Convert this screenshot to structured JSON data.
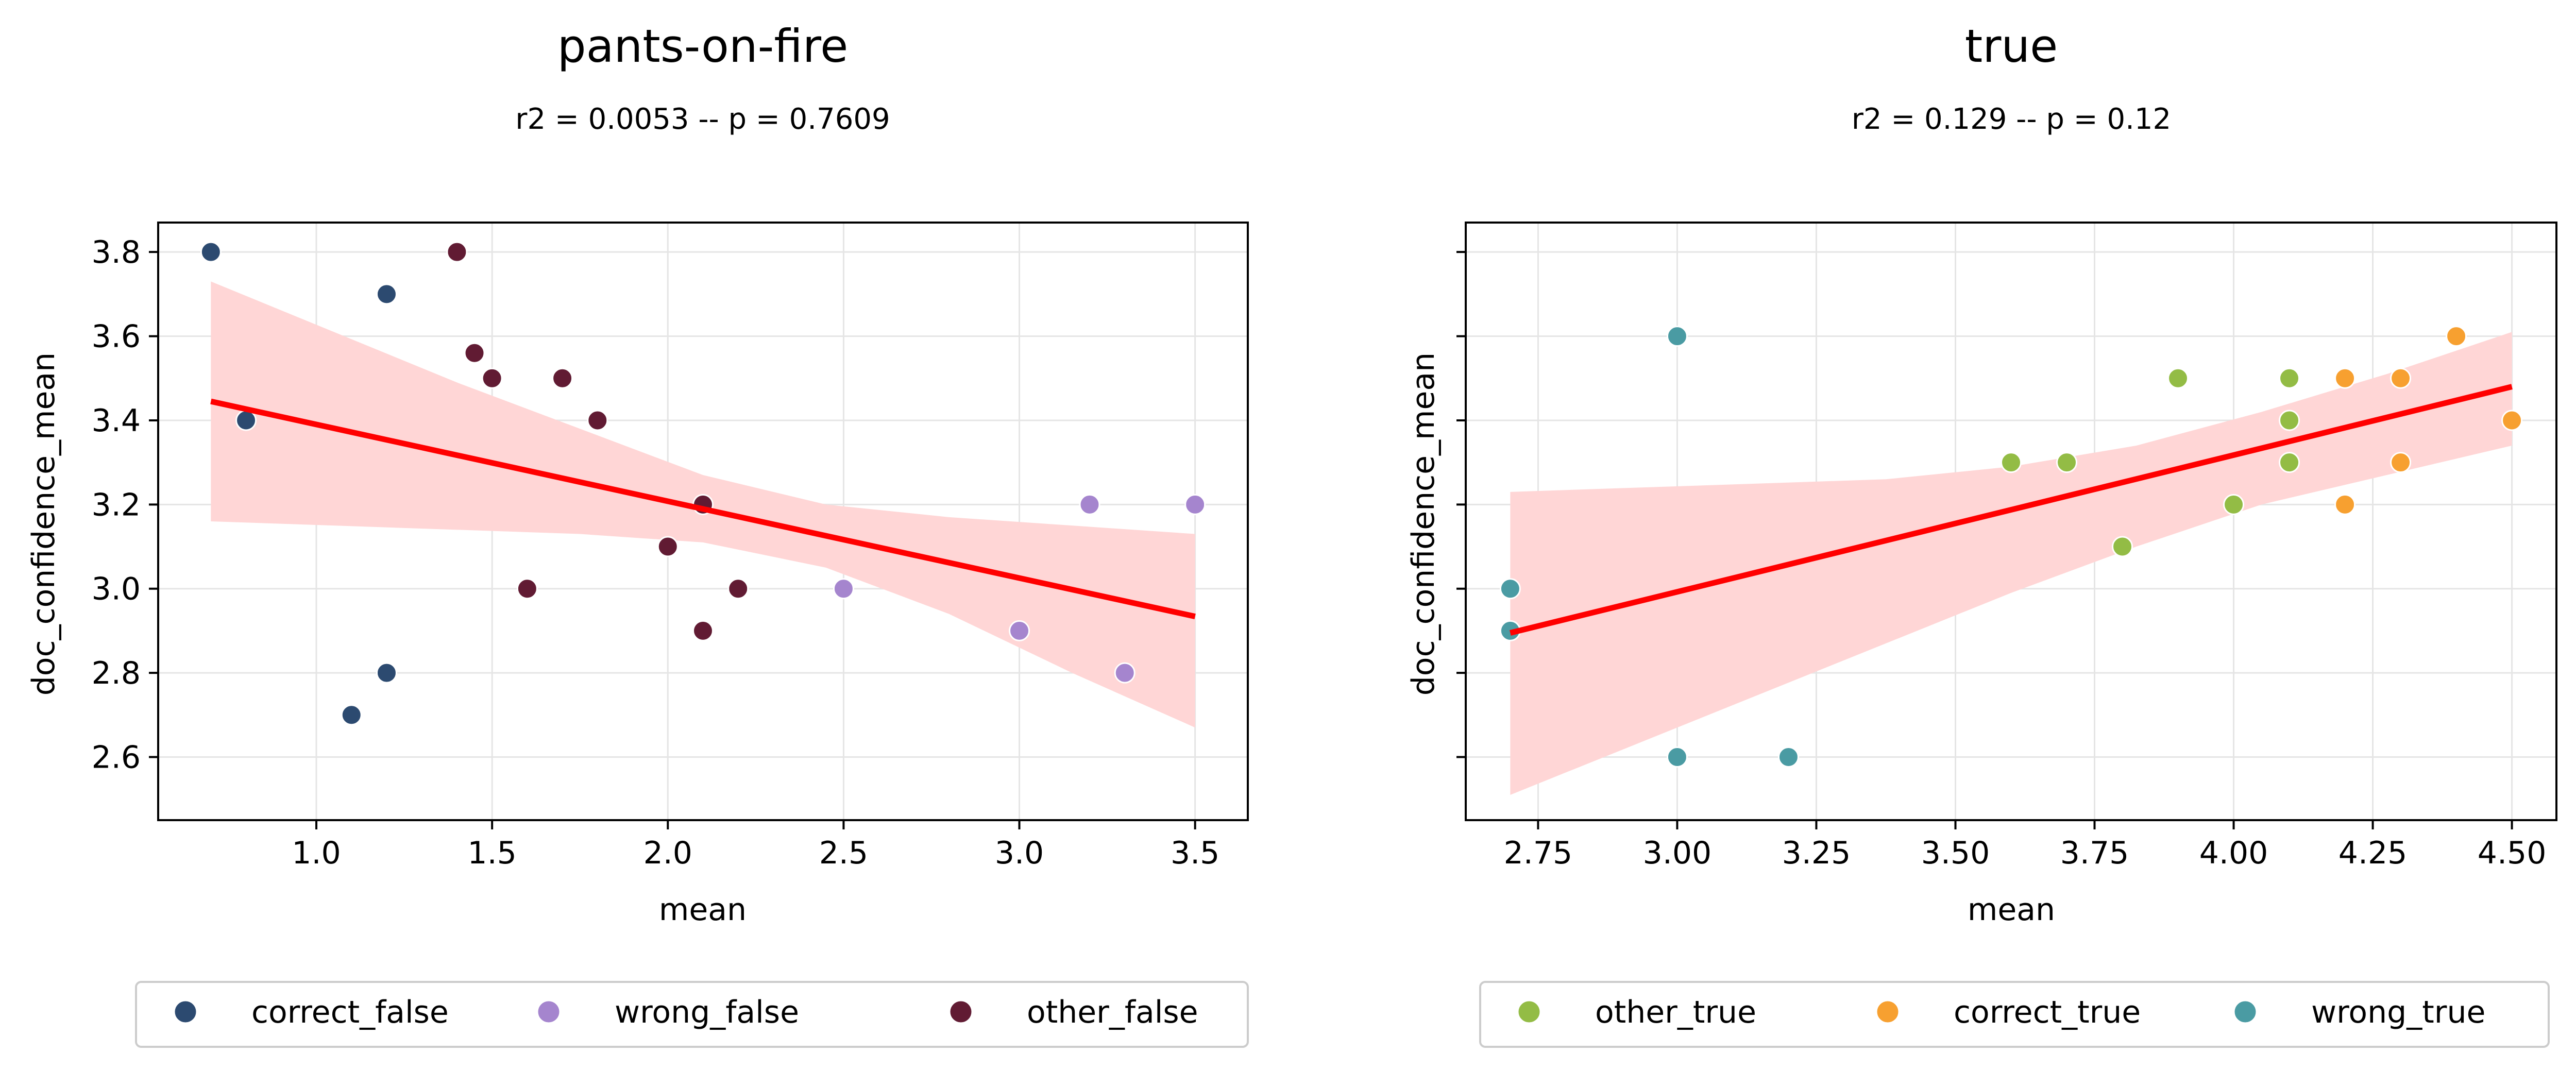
{
  "figure": {
    "background": "#ffffff",
    "regression_color": "#ff0000",
    "band_color": "#ffd6d6",
    "grid_color": "#e5e5e5"
  },
  "chart_data": [
    {
      "type": "scatter",
      "title": "pants-on-fire",
      "subtitle": "r2 = 0.0053 -- p = 0.7609",
      "xlabel": "mean",
      "ylabel": "doc_confidence_mean",
      "xlim": [
        0.55,
        3.65
      ],
      "ylim": [
        2.45,
        3.87
      ],
      "xticks": [
        1.0,
        1.5,
        2.0,
        2.5,
        3.0,
        3.5
      ],
      "xtick_labels": [
        "1.0",
        "1.5",
        "2.0",
        "2.5",
        "3.0",
        "3.5"
      ],
      "yticks": [
        2.6,
        2.8,
        3.0,
        3.2,
        3.4,
        3.6,
        3.8
      ],
      "ytick_labels": [
        "2.6",
        "2.8",
        "3.0",
        "3.2",
        "3.4",
        "3.6",
        "3.8"
      ],
      "show_ytick_labels": true,
      "grid": true,
      "legend_position": "bottom",
      "series": [
        {
          "name": "correct_false",
          "color": "#2c4a70",
          "points": [
            [
              0.7,
              3.8
            ],
            [
              0.8,
              3.4
            ],
            [
              1.1,
              2.7
            ],
            [
              1.2,
              3.7
            ],
            [
              1.2,
              2.8
            ]
          ]
        },
        {
          "name": "wrong_false",
          "color": "#a585ce",
          "points": [
            [
              2.5,
              3.0
            ],
            [
              3.0,
              2.9
            ],
            [
              3.2,
              3.2
            ],
            [
              3.3,
              2.8
            ],
            [
              3.5,
              3.2
            ]
          ]
        },
        {
          "name": "other_false",
          "color": "#611b33",
          "points": [
            [
              1.4,
              3.8
            ],
            [
              1.45,
              3.56
            ],
            [
              1.5,
              3.5
            ],
            [
              1.6,
              3.0
            ],
            [
              1.7,
              3.5
            ],
            [
              1.8,
              3.4
            ],
            [
              2.0,
              3.1
            ],
            [
              2.1,
              3.2
            ],
            [
              2.1,
              2.9
            ],
            [
              2.2,
              3.0
            ]
          ]
        }
      ],
      "regression": {
        "x": [
          0.7,
          1.05,
          1.4,
          1.75,
          2.1,
          2.45,
          2.8,
          3.15,
          3.5
        ],
        "y": [
          3.445,
          3.381,
          3.317,
          3.253,
          3.19,
          3.126,
          3.062,
          2.998,
          2.934
        ],
        "ci_lower": [
          3.16,
          3.15,
          3.14,
          3.13,
          3.11,
          3.05,
          2.94,
          2.8,
          2.67
        ],
        "ci_upper": [
          3.73,
          3.61,
          3.49,
          3.38,
          3.27,
          3.2,
          3.17,
          3.15,
          3.13
        ]
      }
    },
    {
      "type": "scatter",
      "title": "true",
      "subtitle": "r2 = 0.129 -- p = 0.12",
      "xlabel": "mean",
      "ylabel": "doc_confidence_mean",
      "xlim": [
        2.62,
        4.58
      ],
      "ylim": [
        2.45,
        3.87
      ],
      "xticks": [
        2.75,
        3.0,
        3.25,
        3.5,
        3.75,
        4.0,
        4.25,
        4.5
      ],
      "xtick_labels": [
        "2.75",
        "3.00",
        "3.25",
        "3.50",
        "3.75",
        "4.00",
        "4.25",
        "4.50"
      ],
      "yticks": [
        2.6,
        2.8,
        3.0,
        3.2,
        3.4,
        3.6,
        3.8
      ],
      "ytick_labels": [],
      "show_ytick_labels": false,
      "grid": true,
      "legend_position": "bottom",
      "series": [
        {
          "name": "other_true",
          "color": "#93bc45",
          "points": [
            [
              3.6,
              3.3
            ],
            [
              3.7,
              3.3
            ],
            [
              3.8,
              3.1
            ],
            [
              3.9,
              3.5
            ],
            [
              4.0,
              3.2
            ],
            [
              4.1,
              3.5
            ],
            [
              4.1,
              3.4
            ],
            [
              4.1,
              3.3
            ]
          ]
        },
        {
          "name": "correct_true",
          "color": "#f7a030",
          "points": [
            [
              4.2,
              3.5
            ],
            [
              4.2,
              3.2
            ],
            [
              4.3,
              3.5
            ],
            [
              4.3,
              3.3
            ],
            [
              4.4,
              3.6
            ],
            [
              4.5,
              3.4
            ]
          ]
        },
        {
          "name": "wrong_true",
          "color": "#4a9ba3",
          "points": [
            [
              2.7,
              3.0
            ],
            [
              2.7,
              2.9
            ],
            [
              3.0,
              3.6
            ],
            [
              3.0,
              2.6
            ],
            [
              3.2,
              2.6
            ]
          ]
        }
      ],
      "regression": {
        "x": [
          2.7,
          2.925,
          3.15,
          3.375,
          3.6,
          3.825,
          4.05,
          4.275,
          4.5
        ],
        "y": [
          2.895,
          2.968,
          3.041,
          3.114,
          3.188,
          3.261,
          3.334,
          3.407,
          3.48
        ],
        "ci_lower": [
          2.51,
          2.63,
          2.75,
          2.87,
          2.99,
          3.1,
          3.2,
          3.27,
          3.34
        ],
        "ci_upper": [
          3.23,
          3.24,
          3.25,
          3.26,
          3.29,
          3.34,
          3.42,
          3.51,
          3.61
        ]
      }
    }
  ]
}
